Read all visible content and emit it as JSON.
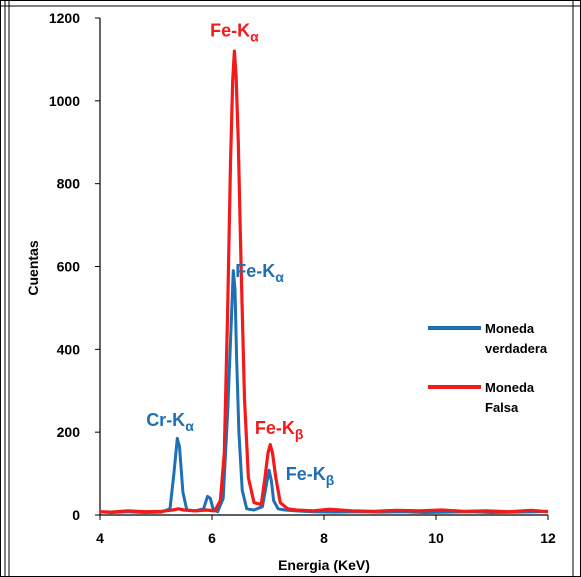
{
  "chart_data": {
    "type": "line",
    "xlabel": "Energia (KeV)",
    "ylabel": "Cuentas",
    "xlim": [
      4,
      12
    ],
    "ylim": [
      0,
      1200
    ],
    "x_ticks": [
      4,
      6,
      8,
      10,
      12
    ],
    "y_ticks": [
      0,
      200,
      400,
      600,
      800,
      1000,
      1200
    ],
    "grid": false,
    "legend_position": "right",
    "series": [
      {
        "name": "Moneda verdadera",
        "color": "#1f6fb4",
        "x": [
          4.0,
          4.2,
          4.5,
          4.8,
          5.1,
          5.25,
          5.32,
          5.38,
          5.42,
          5.48,
          5.55,
          5.7,
          5.85,
          5.92,
          5.97,
          6.02,
          6.1,
          6.2,
          6.28,
          6.34,
          6.38,
          6.41,
          6.44,
          6.48,
          6.54,
          6.62,
          6.75,
          6.9,
          6.98,
          7.02,
          7.06,
          7.1,
          7.18,
          7.3,
          7.5,
          7.8,
          8.2,
          8.6,
          9.0,
          9.4,
          9.8,
          10.2,
          10.6,
          11.0,
          11.4,
          11.8,
          12.0
        ],
        "values": [
          8,
          6,
          8,
          6,
          7,
          15,
          100,
          185,
          165,
          55,
          12,
          10,
          15,
          45,
          40,
          15,
          8,
          40,
          250,
          450,
          590,
          545,
          380,
          200,
          60,
          15,
          12,
          20,
          80,
          108,
          82,
          35,
          15,
          12,
          10,
          8,
          7,
          8,
          7,
          8,
          6,
          7,
          8,
          6,
          7,
          8,
          9
        ]
      },
      {
        "name": "Moneda Falsa",
        "color": "#f21b1b",
        "x": [
          4.0,
          4.2,
          4.5,
          4.8,
          5.1,
          5.3,
          5.4,
          5.5,
          5.7,
          5.9,
          6.05,
          6.15,
          6.22,
          6.28,
          6.33,
          6.37,
          6.4,
          6.43,
          6.47,
          6.52,
          6.58,
          6.65,
          6.75,
          6.88,
          6.95,
          7.0,
          7.04,
          7.08,
          7.14,
          7.22,
          7.35,
          7.5,
          7.8,
          8.1,
          8.5,
          8.9,
          9.3,
          9.7,
          10.1,
          10.5,
          10.9,
          11.3,
          11.7,
          12.0
        ],
        "values": [
          8,
          7,
          10,
          8,
          9,
          12,
          15,
          12,
          10,
          12,
          10,
          35,
          150,
          500,
          850,
          1050,
          1120,
          1060,
          900,
          600,
          280,
          90,
          30,
          25,
          95,
          150,
          170,
          150,
          90,
          30,
          15,
          12,
          10,
          14,
          10,
          9,
          11,
          10,
          12,
          9,
          10,
          8,
          11,
          8
        ]
      }
    ],
    "annotations": [
      {
        "main": "Fe-K",
        "sub": "α",
        "color": "#f21b1b",
        "x": 6.4,
        "y": 1155
      },
      {
        "main": "Fe-K",
        "sub": "α",
        "color": "#1f6fb4",
        "x": 6.85,
        "y": 575
      },
      {
        "main": "Cr-K",
        "sub": "α",
        "color": "#1f6fb4",
        "x": 5.25,
        "y": 215
      },
      {
        "main": "Fe-K",
        "sub": "β",
        "color": "#f21b1b",
        "x": 7.2,
        "y": 195
      },
      {
        "main": "Fe-K",
        "sub": "β",
        "color": "#1f6fb4",
        "x": 7.75,
        "y": 85
      }
    ]
  }
}
